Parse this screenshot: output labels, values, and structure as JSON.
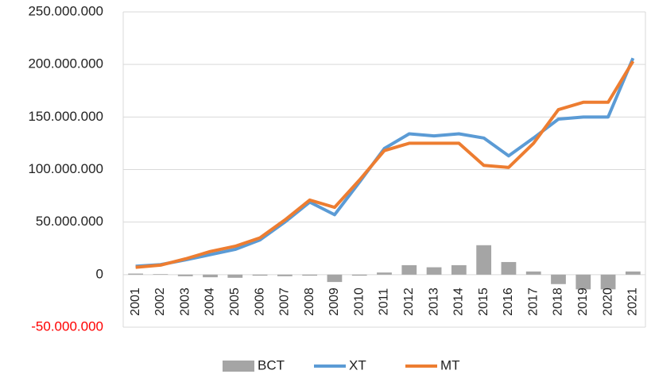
{
  "chart_data": {
    "type": "bar_line",
    "categories": [
      "2001",
      "2002",
      "2003",
      "2004",
      "2005",
      "2006",
      "2007",
      "2008",
      "2009",
      "2010",
      "2011",
      "2012",
      "2013",
      "2014",
      "2015",
      "2016",
      "2017",
      "2018",
      "2019",
      "2020",
      "2021"
    ],
    "series": [
      {
        "name": "BCT",
        "type": "bar",
        "color": "#a5a5a5",
        "values": [
          1000000,
          500000,
          -1500000,
          -2500000,
          -3000000,
          -1000000,
          -1500000,
          -1000000,
          -7000000,
          -1000000,
          2000000,
          9000000,
          7000000,
          9000000,
          28000000,
          12000000,
          3000000,
          -9000000,
          -14000000,
          -14000000,
          3000000
        ]
      },
      {
        "name": "XT",
        "type": "line",
        "color": "#5b9bd5",
        "values": [
          8000000,
          9500000,
          14000000,
          19000000,
          24000000,
          33000000,
          50000000,
          69000000,
          57000000,
          88000000,
          120000000,
          134000000,
          132000000,
          134000000,
          130000000,
          113000000,
          130000000,
          148000000,
          150000000,
          150000000,
          206000000
        ]
      },
      {
        "name": "MT",
        "type": "line",
        "color": "#ed7d31",
        "values": [
          7000000,
          9000000,
          15000000,
          22000000,
          27000000,
          35000000,
          52000000,
          71000000,
          64000000,
          90000000,
          118000000,
          125000000,
          125000000,
          125000000,
          104000000,
          102000000,
          125000000,
          157000000,
          164000000,
          164000000,
          203000000
        ]
      }
    ],
    "ylim": [
      -50000000,
      250000000
    ],
    "yticks": [
      {
        "value": -50000000,
        "label": "-50.000.000"
      },
      0,
      {
        "value": 50000000,
        "label": "50.000.000"
      },
      {
        "value": 100000000,
        "label": "100.000.000"
      },
      {
        "value": 150000000,
        "label": "150.000.000"
      },
      {
        "value": 200000000,
        "label": "200.000.000"
      },
      {
        "value": 250000000,
        "label": "250.000.000"
      }
    ],
    "grid": true,
    "legend": "bottom"
  }
}
